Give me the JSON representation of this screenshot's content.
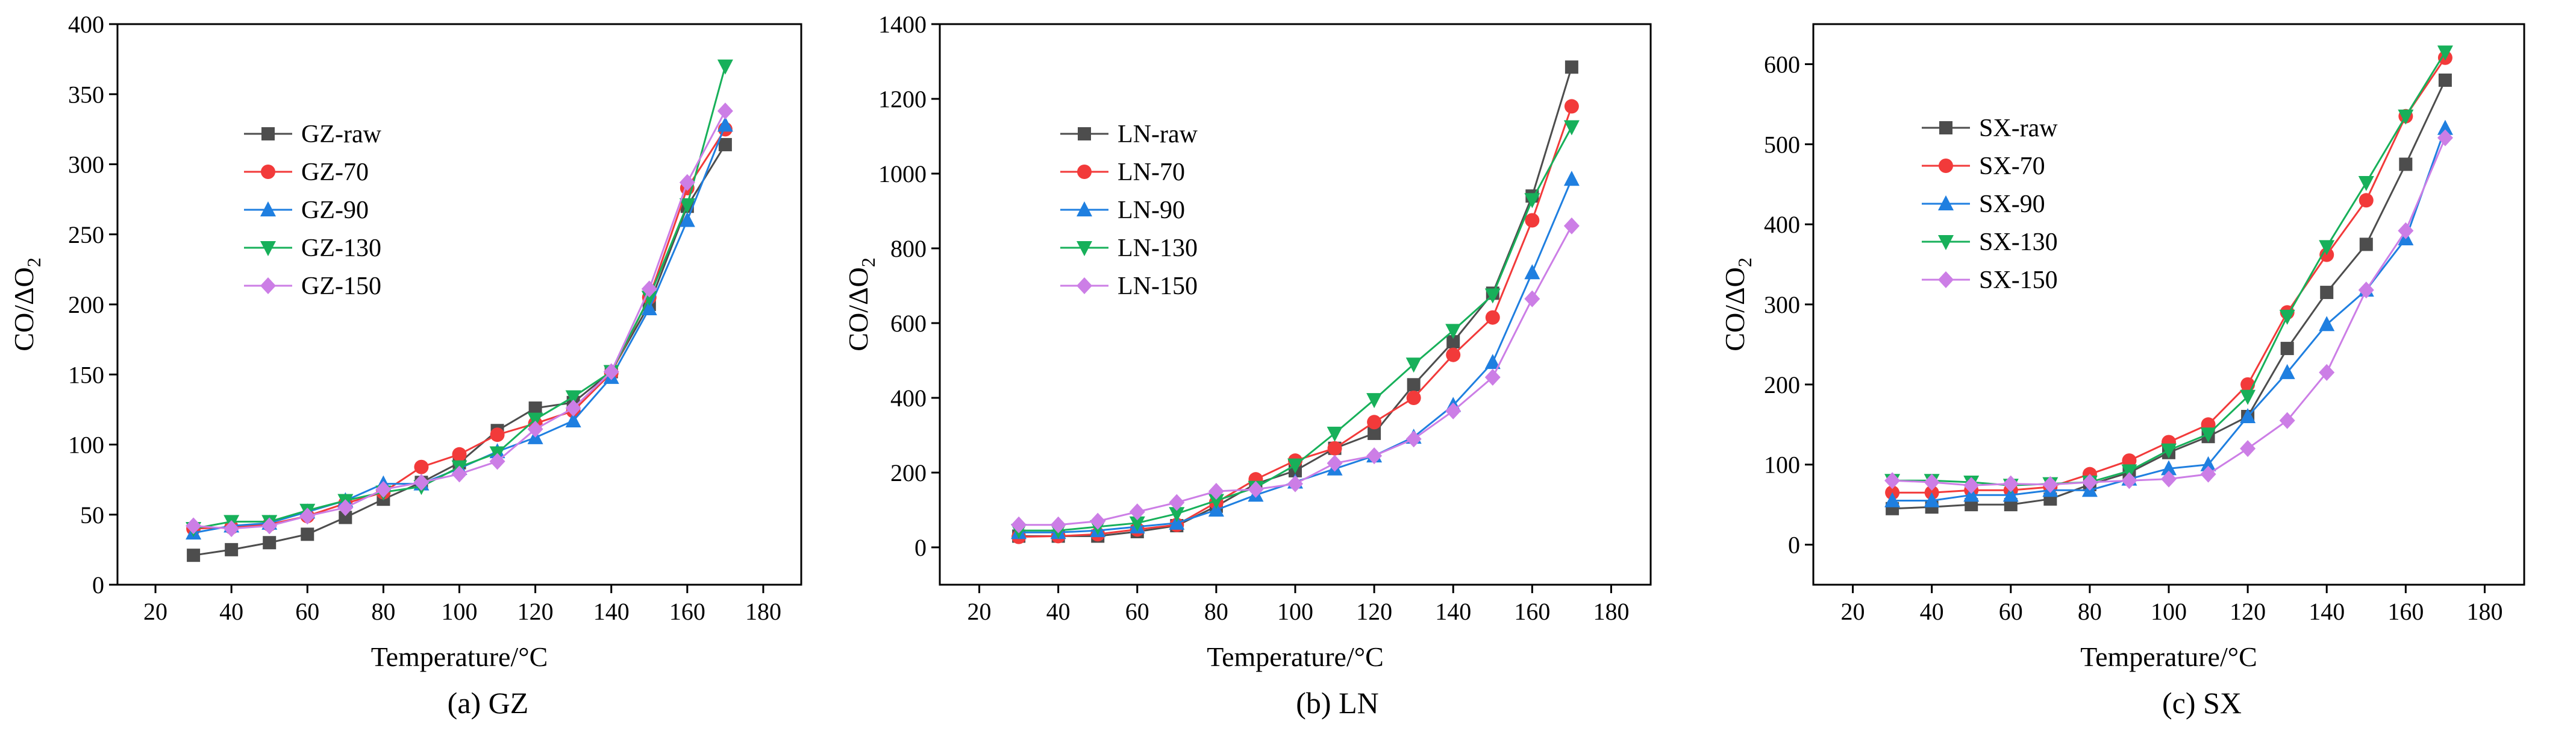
{
  "colors": {
    "raw": "#4d4d4d",
    "t70": "#f23a3a",
    "t90": "#1f7fe0",
    "t130": "#17b05a",
    "t150": "#cc7ee6"
  },
  "chart_data": [
    {
      "type": "line",
      "caption": "(a) GZ",
      "xlabel": "Temperature/°C",
      "ylabel": "CO/ΔO",
      "ylabel_sub": "2",
      "xlim": [
        10,
        190
      ],
      "ylim": [
        0,
        400
      ],
      "xticks": [
        20,
        40,
        60,
        80,
        100,
        120,
        140,
        160,
        180
      ],
      "yticks": [
        0,
        50,
        100,
        150,
        200,
        250,
        300,
        350,
        400
      ],
      "legend_position": "upper-left",
      "x": [
        30,
        40,
        50,
        60,
        70,
        80,
        90,
        100,
        110,
        120,
        130,
        140,
        150,
        160,
        170
      ],
      "series": [
        {
          "name": "GZ-raw",
          "color_key": "raw",
          "marker": "square",
          "values": [
            21,
            25,
            30,
            36,
            48,
            61,
            73,
            87,
            110,
            126,
            130,
            152,
            200,
            270,
            314
          ]
        },
        {
          "name": "GZ-70",
          "color_key": "t70",
          "marker": "circle",
          "values": [
            40,
            41,
            43,
            49,
            58,
            66,
            84,
            93,
            107,
            115,
            124,
            151,
            205,
            283,
            325
          ]
        },
        {
          "name": "GZ-90",
          "color_key": "t90",
          "marker": "triangle-up",
          "values": [
            37,
            42,
            44,
            52,
            60,
            72,
            72,
            83,
            95,
            105,
            117,
            148,
            197,
            260,
            328
          ]
        },
        {
          "name": "GZ-130",
          "color_key": "t130",
          "marker": "triangle-down",
          "values": [
            40,
            45,
            45,
            53,
            60,
            66,
            70,
            84,
            94,
            118,
            134,
            152,
            205,
            271,
            370
          ]
        },
        {
          "name": "GZ-150",
          "color_key": "t150",
          "marker": "diamond",
          "values": [
            42,
            40,
            42,
            49,
            55,
            68,
            73,
            79,
            88,
            111,
            126,
            152,
            211,
            287,
            338
          ]
        }
      ]
    },
    {
      "type": "line",
      "caption": "(b) LN",
      "xlabel": "Temperature/°C",
      "ylabel": "CO/ΔO",
      "ylabel_sub": "2",
      "xlim": [
        10,
        190
      ],
      "ylim": [
        -100,
        1400
      ],
      "xticks": [
        20,
        40,
        60,
        80,
        100,
        120,
        140,
        160,
        180
      ],
      "yticks": [
        0,
        200,
        400,
        600,
        800,
        1000,
        1200,
        1400
      ],
      "legend_position": "upper-left",
      "x": [
        30,
        40,
        50,
        60,
        70,
        80,
        90,
        100,
        110,
        120,
        130,
        140,
        150,
        160,
        170
      ],
      "series": [
        {
          "name": "LN-raw",
          "color_key": "raw",
          "marker": "square",
          "values": [
            30,
            30,
            30,
            42,
            58,
            110,
            170,
            205,
            265,
            305,
            435,
            550,
            680,
            940,
            1285
          ]
        },
        {
          "name": "LN-70",
          "color_key": "t70",
          "marker": "circle",
          "values": [
            28,
            30,
            35,
            48,
            60,
            120,
            182,
            232,
            265,
            335,
            400,
            515,
            615,
            875,
            1180
          ]
        },
        {
          "name": "LN-90",
          "color_key": "t90",
          "marker": "triangle-up",
          "values": [
            40,
            40,
            45,
            55,
            65,
            100,
            140,
            175,
            210,
            245,
            295,
            380,
            495,
            735,
            985
          ]
        },
        {
          "name": "LN-130",
          "color_key": "t130",
          "marker": "triangle-down",
          "values": [
            45,
            45,
            55,
            65,
            90,
            125,
            160,
            220,
            305,
            395,
            490,
            580,
            675,
            930,
            1125
          ]
        },
        {
          "name": "LN-150",
          "color_key": "t150",
          "marker": "diamond",
          "values": [
            60,
            60,
            70,
            95,
            120,
            150,
            155,
            170,
            225,
            245,
            290,
            365,
            455,
            665,
            860
          ]
        }
      ]
    },
    {
      "type": "line",
      "caption": "(c) SX",
      "xlabel": "Temperature/°C",
      "ylabel": "CO/ΔO",
      "ylabel_sub": "2",
      "xlim": [
        10,
        190
      ],
      "ylim": [
        -50,
        650
      ],
      "xticks": [
        20,
        40,
        60,
        80,
        100,
        120,
        140,
        160,
        180
      ],
      "yticks": [
        0,
        100,
        200,
        300,
        400,
        500,
        600
      ],
      "legend_position": "upper-left",
      "x": [
        30,
        40,
        50,
        60,
        70,
        80,
        90,
        100,
        110,
        120,
        130,
        140,
        150,
        160,
        170
      ],
      "series": [
        {
          "name": "SX-raw",
          "color_key": "raw",
          "marker": "square",
          "values": [
            45,
            47,
            50,
            50,
            57,
            75,
            90,
            115,
            135,
            160,
            245,
            315,
            375,
            475,
            580
          ]
        },
        {
          "name": "SX-70",
          "color_key": "t70",
          "marker": "circle",
          "values": [
            65,
            65,
            68,
            68,
            72,
            88,
            105,
            128,
            150,
            200,
            290,
            362,
            430,
            535,
            608
          ]
        },
        {
          "name": "SX-90",
          "color_key": "t90",
          "marker": "triangle-up",
          "values": [
            55,
            55,
            62,
            62,
            68,
            68,
            82,
            95,
            100,
            160,
            215,
            275,
            318,
            382,
            520
          ]
        },
        {
          "name": "SX-130",
          "color_key": "t130",
          "marker": "triangle-down",
          "values": [
            80,
            80,
            78,
            74,
            76,
            78,
            92,
            118,
            138,
            185,
            285,
            372,
            452,
            535,
            615
          ]
        },
        {
          "name": "SX-150",
          "color_key": "t150",
          "marker": "diamond",
          "values": [
            80,
            78,
            74,
            76,
            75,
            78,
            80,
            82,
            88,
            120,
            155,
            215,
            318,
            392,
            508
          ]
        }
      ]
    }
  ]
}
